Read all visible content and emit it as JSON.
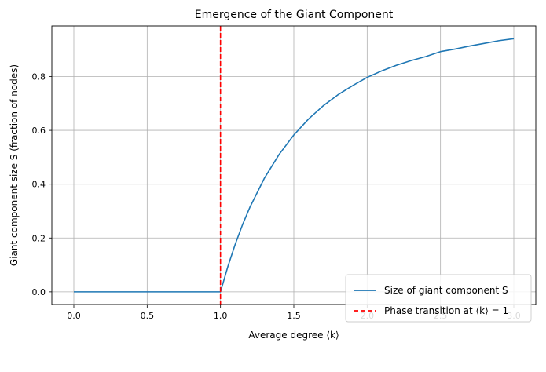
{
  "chart_data": {
    "type": "line",
    "title": "Emergence of the Giant Component",
    "xlabel": "Average degree ⟨k⟩",
    "ylabel": "Giant component size S (fraction of nodes)",
    "xlim": [
      -0.15,
      3.15
    ],
    "ylim": [
      -0.047,
      0.988
    ],
    "xticks": [
      0.0,
      0.5,
      1.0,
      1.5,
      2.0,
      2.5,
      3.0
    ],
    "xtick_labels": [
      "0.0",
      "0.5",
      "1.0",
      "1.5",
      "2.0",
      "2.5",
      "3.0"
    ],
    "yticks": [
      0.0,
      0.2,
      0.4,
      0.6,
      0.8
    ],
    "ytick_labels": [
      "0.0",
      "0.2",
      "0.4",
      "0.6",
      "0.8"
    ],
    "grid": true,
    "legend_position": "lower-right",
    "series": [
      {
        "name": "Size of giant component S",
        "color": "#1f77b4",
        "style": "solid",
        "x": [
          0.0,
          0.25,
          0.5,
          0.75,
          1.0,
          1.05,
          1.1,
          1.15,
          1.2,
          1.3,
          1.4,
          1.5,
          1.6,
          1.7,
          1.8,
          1.9,
          2.0,
          2.1,
          2.2,
          2.3,
          2.4,
          2.5,
          2.6,
          2.7,
          2.8,
          2.9,
          3.0
        ],
        "y": [
          0.0,
          0.0,
          0.0,
          0.0,
          0.0,
          0.0937,
          0.1761,
          0.2492,
          0.3137,
          0.423,
          0.5108,
          0.5828,
          0.642,
          0.6912,
          0.7319,
          0.7659,
          0.7968,
          0.8212,
          0.8418,
          0.8594,
          0.8743,
          0.8926,
          0.9021,
          0.9135,
          0.9233,
          0.9333,
          0.9405
        ]
      },
      {
        "name": "Phase transition at ⟨k⟩ = 1",
        "color": "#ff0000",
        "style": "dashed",
        "type": "vline",
        "x_value": 1.0
      }
    ]
  }
}
